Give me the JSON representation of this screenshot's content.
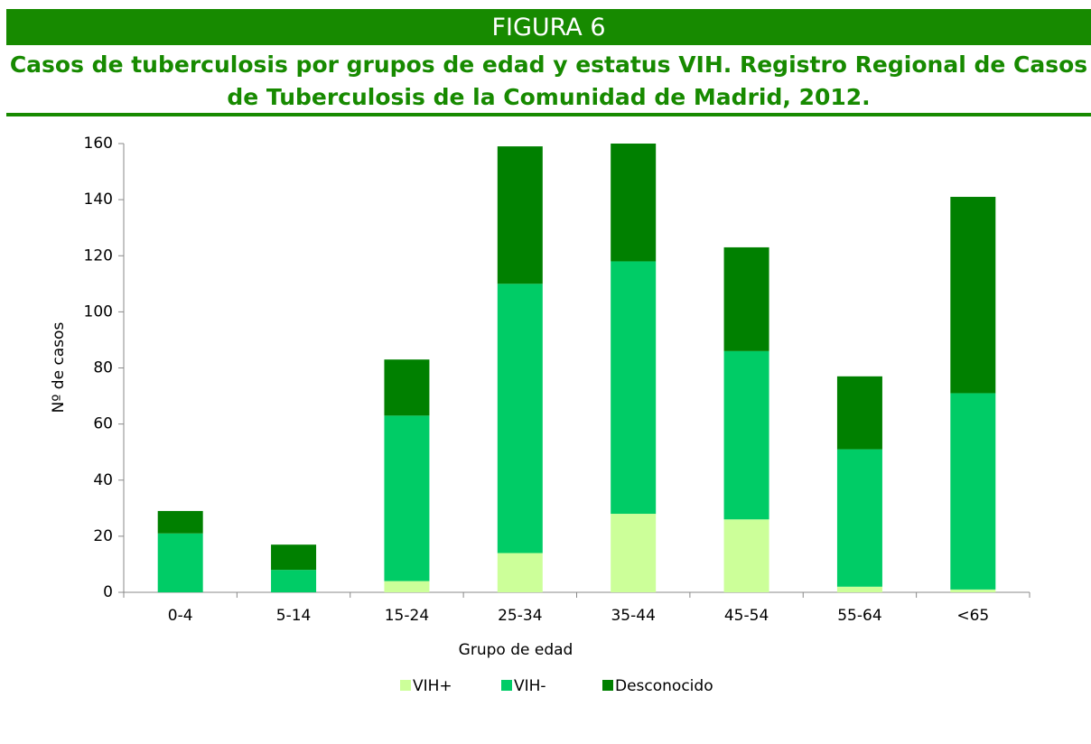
{
  "chart_data": {
    "type": "stacked_bar",
    "title": "FIGURA 6",
    "subtitle": "Casos de tuberculosis por grupos de edad y estatus VIH. Registro Regional de Casos de Tuberculosis de la Comunidad de Madrid, 2012.",
    "x_label": "Grupo de edad",
    "y_label": "Nº de casos",
    "categories": [
      "0-4",
      "5-14",
      "15-24",
      "25-34",
      "35-44",
      "45-54",
      "55-64",
      "<65"
    ],
    "series": [
      {
        "name": "VIH+",
        "color": "#ccff99",
        "values": [
          0,
          0,
          4,
          14,
          28,
          26,
          2,
          1
        ]
      },
      {
        "name": "VIH-",
        "color": "#00cc66",
        "values": [
          21,
          8,
          59,
          96,
          90,
          60,
          49,
          70
        ]
      },
      {
        "name": "Desconocido",
        "color": "#008000",
        "values": [
          8,
          9,
          20,
          49,
          42,
          37,
          26,
          70
        ]
      }
    ],
    "ylim": [
      0,
      160
    ],
    "yticks": [
      0,
      20,
      40,
      60,
      80,
      100,
      120,
      140,
      160
    ],
    "grid": false,
    "legend": "bottom"
  }
}
